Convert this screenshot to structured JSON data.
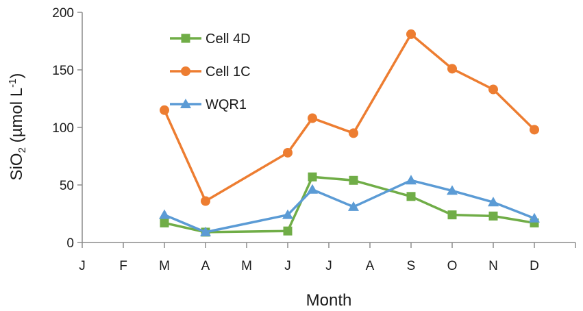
{
  "chart_data": {
    "type": "line",
    "title": "",
    "xlabel": "Month",
    "ylabel_parts": [
      "SiO",
      "2",
      " (µmol L",
      "-1",
      ")"
    ],
    "ylim": [
      0,
      200
    ],
    "yticks": [
      0,
      50,
      100,
      150,
      200
    ],
    "xlim": [
      0,
      12
    ],
    "month_ticks": [
      "J",
      "F",
      "M",
      "A",
      "M",
      "J",
      "J",
      "A",
      "S",
      "O",
      "N",
      "D"
    ],
    "grid": false,
    "legend_position": "top-left",
    "series": [
      {
        "name": "Cell 4D",
        "color": "#70ad47",
        "marker": "square",
        "x": [
          2.0,
          3.0,
          5.0,
          5.6,
          6.6,
          8.0,
          9.0,
          10.0,
          11.0
        ],
        "y": [
          17,
          9,
          10,
          57,
          54,
          40,
          24,
          23,
          17
        ]
      },
      {
        "name": "Cell 1C",
        "color": "#ed7d31",
        "marker": "circle",
        "x": [
          2.0,
          3.0,
          5.0,
          5.6,
          6.6,
          8.0,
          9.0,
          10.0,
          11.0
        ],
        "y": [
          115,
          36,
          78,
          108,
          95,
          181,
          151,
          133,
          98
        ]
      },
      {
        "name": "WQR1",
        "color": "#5b9bd5",
        "marker": "triangle",
        "x": [
          2.0,
          3.0,
          5.0,
          5.6,
          6.6,
          8.0,
          9.0,
          10.0,
          11.0
        ],
        "y": [
          24,
          9,
          24,
          46,
          31,
          54,
          45,
          35,
          21
        ]
      }
    ]
  }
}
